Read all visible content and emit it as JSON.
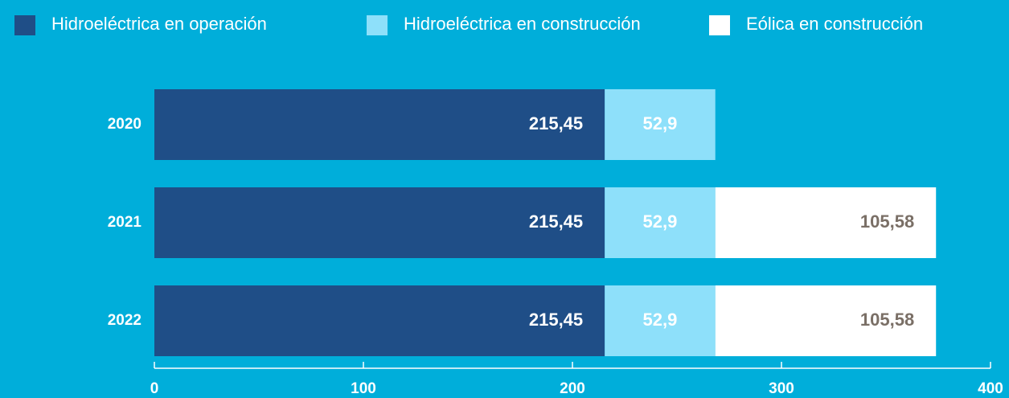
{
  "chart_data": {
    "type": "stacked-bar-horizontal",
    "categories": [
      "2020",
      "2021",
      "2022"
    ],
    "series": [
      {
        "name": "Hidroeléctrica en operación",
        "color": "#1f4e87",
        "label_color": "#ffffff",
        "values": [
          215.45,
          215.45,
          215.45
        ],
        "value_labels": [
          "215,45",
          "215,45",
          "215,45"
        ]
      },
      {
        "name": "Hidroeléctrica en construcción",
        "color": "#8ee0fa",
        "label_color": "#ffffff",
        "values": [
          52.9,
          52.9,
          52.9
        ],
        "value_labels": [
          "52,9",
          "52,9",
          "52,9"
        ]
      },
      {
        "name": "Eólica en construcción",
        "color": "#ffffff",
        "label_color": "#7a6f66",
        "values": [
          null,
          105.58,
          105.58
        ],
        "value_labels": [
          null,
          "105,58",
          "105,58"
        ]
      }
    ],
    "xlim": [
      0,
      400
    ],
    "xticks": [
      0,
      100,
      200,
      300,
      400
    ]
  }
}
